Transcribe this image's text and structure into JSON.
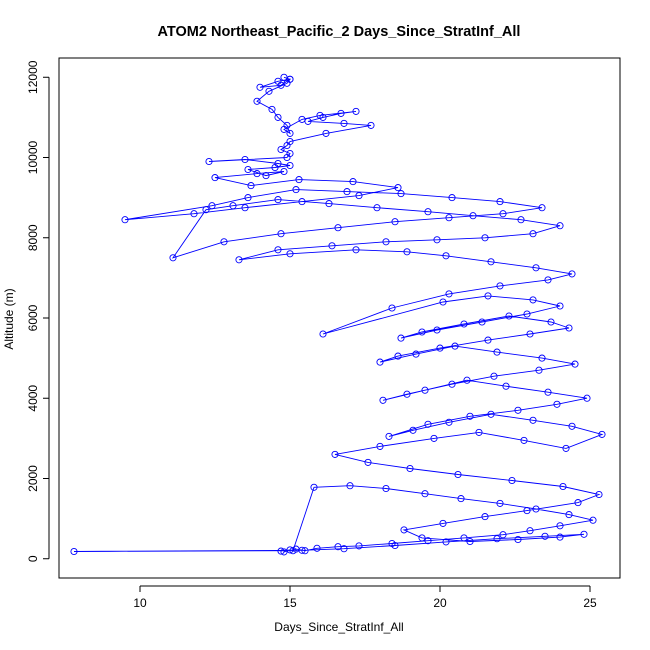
{
  "colors": {
    "series": "#0000ff",
    "axis": "#000000",
    "background": "#ffffff"
  },
  "chart_data": {
    "type": "line",
    "marker": "open-circle",
    "title": "ATOM2 Northeast_Pacific_2 Days_Since_StratInf_All",
    "xlabel": "Days_Since_StratInf_All",
    "ylabel": "Altitude (m)",
    "xlim": [
      7.3,
      26.0
    ],
    "ylim": [
      -480,
      12480
    ],
    "xticks": [
      10,
      15,
      20,
      25
    ],
    "yticks": [
      0,
      2000,
      4000,
      6000,
      8000,
      10000,
      12000
    ],
    "grid": false,
    "legend": "none",
    "series": [
      {
        "x": [
          14.7,
          15.0,
          14.8,
          15.2,
          15.5,
          15.9,
          16.6,
          17.3,
          18.4,
          19.6,
          20.8,
          22.1,
          23.0,
          24.0,
          25.1,
          24.3,
          23.2,
          22.0,
          20.7,
          19.5,
          18.2,
          17.0,
          15.8,
          15.1,
          7.8,
          15.4,
          16.8,
          18.5,
          20.2,
          21.9,
          23.5,
          24.8,
          24.0,
          22.6,
          21.0,
          19.4,
          18.8,
          20.1,
          21.5,
          22.9,
          24.6,
          25.3,
          24.1,
          22.4,
          20.6,
          19.0,
          17.6,
          16.5,
          18.0,
          19.8,
          21.3,
          22.8,
          24.2,
          25.4,
          24.4,
          23.1,
          21.7,
          20.3,
          19.1,
          18.3,
          19.6,
          21.0,
          22.6,
          23.9,
          24.9,
          23.6,
          22.2,
          20.9,
          19.5,
          18.1,
          18.9,
          20.4,
          21.8,
          23.3,
          24.5,
          23.4,
          21.9,
          20.5,
          19.2,
          18.0,
          18.6,
          20.0,
          21.6,
          23.0,
          24.3,
          23.7,
          22.3,
          20.8,
          19.4,
          18.7,
          19.9,
          21.4,
          22.9,
          24.0,
          23.1,
          21.6,
          20.1,
          16.1,
          18.4,
          20.3,
          22.0,
          23.6,
          24.4,
          23.2,
          21.7,
          20.2,
          18.9,
          17.2,
          15.0,
          13.3,
          14.6,
          16.4,
          18.2,
          19.9,
          21.5,
          23.1,
          24.0,
          22.7,
          21.1,
          19.6,
          17.9,
          16.3,
          14.6,
          13.1,
          12.2,
          11.1,
          12.8,
          14.7,
          16.6,
          18.5,
          20.3,
          22.1,
          23.4,
          22.0,
          20.4,
          18.7,
          16.9,
          15.2,
          13.6,
          12.4,
          9.5,
          11.8,
          13.5,
          15.4,
          17.3,
          18.6,
          17.1,
          15.3,
          13.7,
          12.5,
          13.9,
          14.8,
          14.2,
          13.6,
          14.5,
          15.0,
          14.6,
          13.5,
          12.3,
          14.9,
          15.0,
          14.7,
          14.9,
          15.0,
          16.2,
          17.7,
          16.8,
          15.6,
          16.1,
          16.7,
          17.2,
          16.0,
          15.4,
          14.8,
          15.0,
          14.9,
          14.6,
          14.4,
          13.9,
          14.3,
          14.9,
          15.0,
          14.6,
          14.0,
          14.7,
          15.0,
          14.8
        ],
        "y": [
          190,
          220,
          170,
          240,
          200,
          260,
          300,
          320,
          380,
          450,
          520,
          600,
          700,
          820,
          960,
          1100,
          1240,
          1380,
          1500,
          1620,
          1750,
          1820,
          1780,
          200,
          180,
          210,
          250,
          330,
          420,
          500,
          560,
          610,
          540,
          480,
          430,
          520,
          720,
          880,
          1050,
          1200,
          1400,
          1600,
          1800,
          1950,
          2100,
          2250,
          2400,
          2600,
          2800,
          3000,
          3150,
          2950,
          2750,
          3100,
          3300,
          3450,
          3600,
          3400,
          3200,
          3050,
          3350,
          3550,
          3700,
          3850,
          4000,
          4150,
          4300,
          4450,
          4200,
          3950,
          4100,
          4350,
          4550,
          4700,
          4850,
          5000,
          5150,
          5300,
          5100,
          4900,
          5050,
          5250,
          5450,
          5600,
          5750,
          5900,
          6050,
          5850,
          5650,
          5500,
          5700,
          5900,
          6100,
          6300,
          6450,
          6550,
          6400,
          5600,
          6250,
          6600,
          6800,
          6950,
          7100,
          7250,
          7400,
          7550,
          7650,
          7700,
          7600,
          7450,
          7700,
          7800,
          7900,
          7950,
          8000,
          8100,
          8300,
          8450,
          8550,
          8650,
          8750,
          8850,
          8950,
          8800,
          8700,
          7500,
          7900,
          8100,
          8250,
          8400,
          8500,
          8600,
          8750,
          8900,
          9000,
          9100,
          9150,
          9200,
          9000,
          8800,
          8450,
          8600,
          8750,
          8900,
          9050,
          9250,
          9400,
          9450,
          9300,
          9500,
          9600,
          9650,
          9550,
          9700,
          9750,
          9800,
          9850,
          9950,
          9900,
          10000,
          10100,
          10200,
          10300,
          10400,
          10600,
          10800,
          10850,
          10900,
          11000,
          11100,
          11150,
          11050,
          10950,
          10700,
          10600,
          10800,
          11000,
          11200,
          11400,
          11650,
          11850,
          11950,
          11900,
          11750,
          11800,
          11950,
          12000
        ]
      }
    ]
  }
}
